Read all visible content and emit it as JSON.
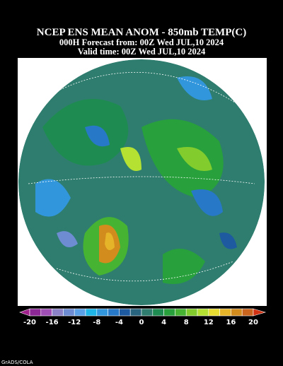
{
  "header": {
    "title": "NCEP ENS MEAN ANOM - 850mb TEMP(C)",
    "line2": "000H Forecast from: 00Z Wed JUL,10 2024",
    "line3": "Valid time: 00Z Wed JUL,10 2024"
  },
  "colorbar": {
    "colors": [
      "#a0208c",
      "#8c2896",
      "#a050b4",
      "#8c82c8",
      "#6e8cd2",
      "#5aa0e6",
      "#1eb4e6",
      "#3296dc",
      "#2878c8",
      "#1e5aa0",
      "#28647d",
      "#2e7d6e",
      "#1e8c50",
      "#28a03c",
      "#46b432",
      "#82cd2d",
      "#b4e132",
      "#e6dc32",
      "#e6b428",
      "#d28c1e",
      "#c8641e",
      "#d23214"
    ],
    "ticks": [
      -20,
      -16,
      -12,
      -8,
      -4,
      0,
      4,
      8,
      12,
      16,
      20
    ]
  },
  "footer": "GrADS/COLA"
}
